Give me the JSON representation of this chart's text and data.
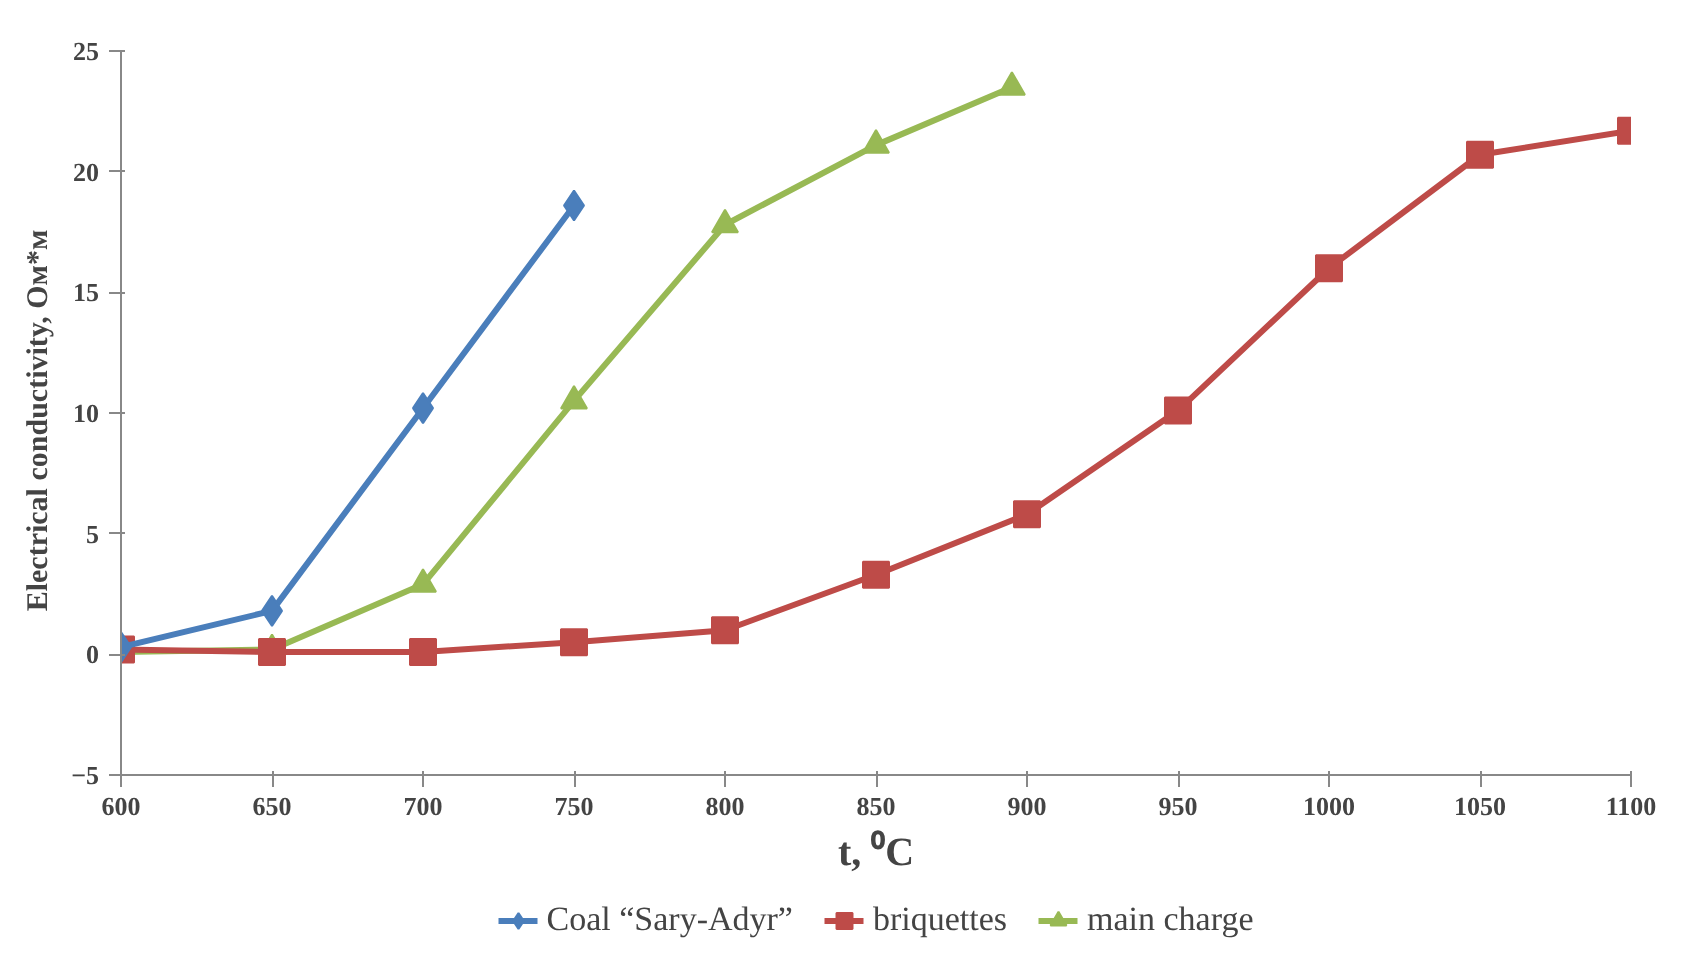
{
  "chart_data": {
    "type": "line",
    "xlabel": "t, ⁰C",
    "ylabel": "Electrical  conductivity,  Ом*м",
    "xlim": [
      600,
      1100
    ],
    "ylim": [
      -5,
      25
    ],
    "xticks": [
      600,
      650,
      700,
      750,
      800,
      850,
      900,
      950,
      1000,
      1050,
      1100
    ],
    "yticks": [
      -5,
      0,
      5,
      10,
      15,
      20,
      25
    ],
    "grid": false,
    "legend": "bottom",
    "line_style": "solid",
    "series": [
      {
        "name": "Coal “Sary-Adyr”",
        "color": "#4a7ebb",
        "marker": "diamond",
        "x": [
          600,
          650,
          700,
          750
        ],
        "values": [
          0.3,
          1.8,
          10.2,
          18.6
        ]
      },
      {
        "name": "briquettes",
        "color": "#be4b48",
        "marker": "square",
        "x": [
          600,
          650,
          700,
          750,
          800,
          850,
          900,
          950,
          1000,
          1050,
          1100
        ],
        "values": [
          0.2,
          0.1,
          0.1,
          0.5,
          1.0,
          3.3,
          5.8,
          10.1,
          16.0,
          20.7,
          21.7
        ]
      },
      {
        "name": "main charge",
        "color": "#98b954",
        "marker": "triangle",
        "x": [
          600,
          650,
          700,
          750,
          800,
          850,
          895
        ],
        "values": [
          0.1,
          0.2,
          2.9,
          10.5,
          17.8,
          21.1,
          23.5
        ]
      }
    ]
  }
}
